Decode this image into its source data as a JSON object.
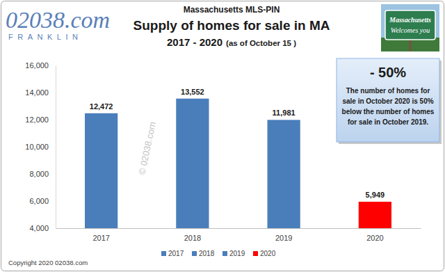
{
  "chart_data": {
    "type": "bar",
    "logo": {
      "text": "02038.com",
      "subtext": "FRANKLIN"
    },
    "header": "Massachusetts MLS-PIN",
    "title": "Supply of homes for sale in MA",
    "subtitle": "2017 - 2020",
    "subtitle_note": "(as of October 15 )",
    "sign": [
      "Massachusetts",
      "Welcomes you"
    ],
    "annotation": {
      "headline": "- 50%",
      "lines": [
        "The number of homes for",
        "sale in October 2020 is 50%",
        "below the number of homes",
        "for sale in October 2019."
      ]
    },
    "watermark": "© 02038.com",
    "copyright": "Copyright 2020 02038.com",
    "categories": [
      "2017",
      "2018",
      "2019",
      "2020"
    ],
    "values": [
      12472,
      13552,
      11981,
      5949
    ],
    "value_labels": [
      "12,472",
      "13,552",
      "11,981",
      "5,949"
    ],
    "colors": [
      "#4a7ebb",
      "#4a7ebb",
      "#4a7ebb",
      "#ff0000"
    ],
    "ylim": [
      4000,
      16000
    ],
    "yticks": [
      {
        "value": 4000,
        "label": "4,000"
      },
      {
        "value": 6000,
        "label": "6,000"
      },
      {
        "value": 8000,
        "label": "8,000"
      },
      {
        "value": 10000,
        "label": "10,000"
      },
      {
        "value": 12000,
        "label": "12,000"
      },
      {
        "value": 14000,
        "label": "14,000"
      },
      {
        "value": 16000,
        "label": "16,000"
      }
    ],
    "grid": false,
    "legend": "bottom",
    "data_labels": true
  }
}
